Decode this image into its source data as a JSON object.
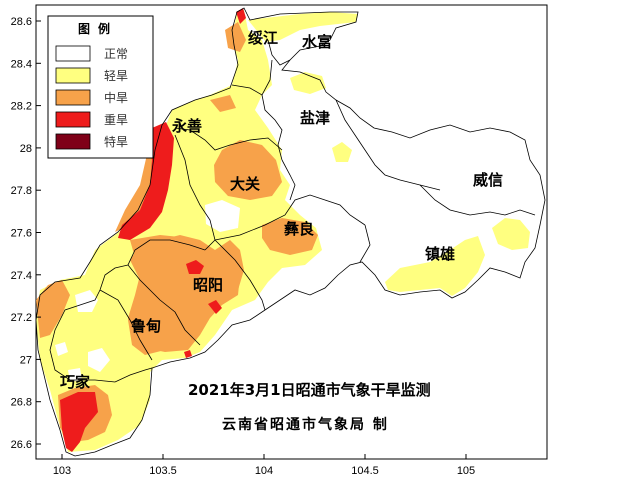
{
  "map": {
    "title": "2021年3月1日昭通市气象干旱监测",
    "subtitle": "云南省昭通市气象局 制",
    "x_ticks": [
      "103",
      "103.5",
      "104",
      "104.5",
      "105"
    ],
    "y_ticks": [
      "28.6",
      "28.4",
      "28.2",
      "28",
      "27.8",
      "27.6",
      "27.4",
      "27.2",
      "27",
      "26.8",
      "26.6"
    ],
    "counties": {
      "suijiang": "绥江",
      "shuifu": "水富",
      "yanjin": "盐津",
      "yongshan": "永善",
      "daguan": "大关",
      "weixin": "威信",
      "yiliang": "彝良",
      "zhenxiong": "镇雄",
      "zhaoyang": "昭阳",
      "ludian": "鲁甸",
      "qiaojia": "巧家"
    }
  },
  "legend": {
    "title": "图例",
    "items": [
      {
        "label": "正常",
        "color": "#ffffff"
      },
      {
        "label": "轻旱",
        "color": "#ffff80"
      },
      {
        "label": "中旱",
        "color": "#f7a24a"
      },
      {
        "label": "重旱",
        "color": "#ee1c1c"
      },
      {
        "label": "特旱",
        "color": "#7f0018"
      }
    ]
  }
}
